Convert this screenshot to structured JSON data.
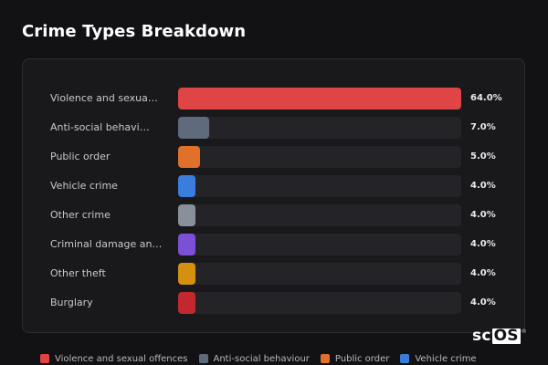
{
  "title": "Crime Types Breakdown",
  "chart_data": {
    "type": "bar",
    "orientation": "horizontal",
    "title": "Crime Types Breakdown",
    "value_max": 64.0,
    "categories": [
      "Violence and sexua…",
      "Anti-social behavi…",
      "Public order",
      "Vehicle crime",
      "Other crime",
      "Criminal damage an…",
      "Other theft",
      "Burglary"
    ],
    "values": [
      64.0,
      7.0,
      5.0,
      4.0,
      4.0,
      4.0,
      4.0,
      4.0
    ],
    "value_labels": [
      "64.0%",
      "7.0%",
      "5.0%",
      "4.0%",
      "4.0%",
      "4.0%",
      "4.0%",
      "4.0%"
    ],
    "colors": [
      "#e04545",
      "#5f6b7d",
      "#e0702a",
      "#3b7ddd",
      "#8a909b",
      "#7b4fd6",
      "#d4900f",
      "#c4282f"
    ]
  },
  "legend": [
    {
      "label": "Violence and sexual offences",
      "color": "#e04545"
    },
    {
      "label": "Anti-social behaviour",
      "color": "#5f6b7d"
    },
    {
      "label": "Public order",
      "color": "#e0702a"
    },
    {
      "label": "Vehicle crime",
      "color": "#3b7ddd"
    }
  ],
  "brand": {
    "prefix": "sc",
    "boxed": "OS",
    "mark": "®"
  }
}
